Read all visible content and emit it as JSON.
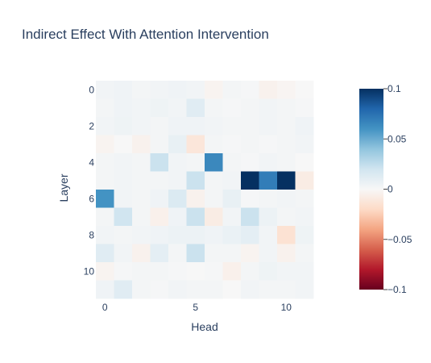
{
  "chart_data": {
    "type": "heatmap",
    "title": "Indirect Effect With Attention Intervention",
    "xlabel": "Head",
    "ylabel": "Layer",
    "x_ticks": [
      0,
      5,
      10
    ],
    "y_ticks": [
      0,
      2,
      4,
      6,
      8,
      10
    ],
    "zmin": -0.1,
    "zmax": 0.1,
    "colorscale": "RdBu",
    "colorbar_ticks": [
      {
        "value": 0.1,
        "label": "0.1"
      },
      {
        "value": 0.05,
        "label": "0.05"
      },
      {
        "value": 0,
        "label": "0"
      },
      {
        "value": -0.05,
        "label": "−0.05"
      },
      {
        "value": -0.1,
        "label": "−0.1"
      }
    ],
    "layers": [
      0,
      1,
      2,
      3,
      4,
      5,
      6,
      7,
      8,
      9,
      10,
      11
    ],
    "heads": [
      0,
      1,
      2,
      3,
      4,
      5,
      6,
      7,
      8,
      9,
      10,
      11
    ],
    "z": [
      [
        0.003,
        0.004,
        0.002,
        0.003,
        0.004,
        0.003,
        -0.003,
        0.002,
        0.001,
        -0.004,
        -0.002,
        0.0
      ],
      [
        0.002,
        0.004,
        0.003,
        0.005,
        0.003,
        0.012,
        0.002,
        0.001,
        0.002,
        0.003,
        0.002,
        0.001
      ],
      [
        0.003,
        0.005,
        0.003,
        0.002,
        0.004,
        0.004,
        0.003,
        0.002,
        0.002,
        0.003,
        0.002,
        0.004
      ],
      [
        -0.003,
        0.0,
        -0.004,
        0.002,
        0.008,
        -0.012,
        0.002,
        0.001,
        0.002,
        0.001,
        0.002,
        0.003
      ],
      [
        0.002,
        0.003,
        0.002,
        0.022,
        0.003,
        0.002,
        0.065,
        0.002,
        0.001,
        0.003,
        0.002,
        0.0
      ],
      [
        0.002,
        0.003,
        0.002,
        0.002,
        0.003,
        0.022,
        0.002,
        0.003,
        0.1,
        0.07,
        0.102,
        -0.008
      ],
      [
        0.06,
        0.003,
        0.002,
        0.004,
        0.015,
        -0.004,
        0.002,
        0.008,
        0.001,
        0.002,
        0.003,
        0.002
      ],
      [
        0.002,
        0.02,
        0.002,
        -0.005,
        0.004,
        0.022,
        -0.008,
        0.003,
        0.022,
        0.006,
        0.002,
        0.003
      ],
      [
        0.003,
        0.002,
        0.003,
        0.004,
        0.006,
        0.006,
        0.004,
        0.007,
        0.01,
        0.003,
        -0.015,
        0.005
      ],
      [
        0.012,
        0.003,
        -0.004,
        0.01,
        0.002,
        0.022,
        0.002,
        0.002,
        -0.003,
        0.003,
        -0.004,
        0.002
      ],
      [
        -0.003,
        0.001,
        0.002,
        0.002,
        0.001,
        0.0,
        0.001,
        -0.005,
        0.002,
        0.005,
        0.003,
        0.003
      ],
      [
        0.004,
        0.012,
        0.002,
        0.001,
        0.003,
        0.002,
        0.002,
        0.0,
        0.003,
        0.002,
        0.002,
        0.003
      ]
    ]
  }
}
